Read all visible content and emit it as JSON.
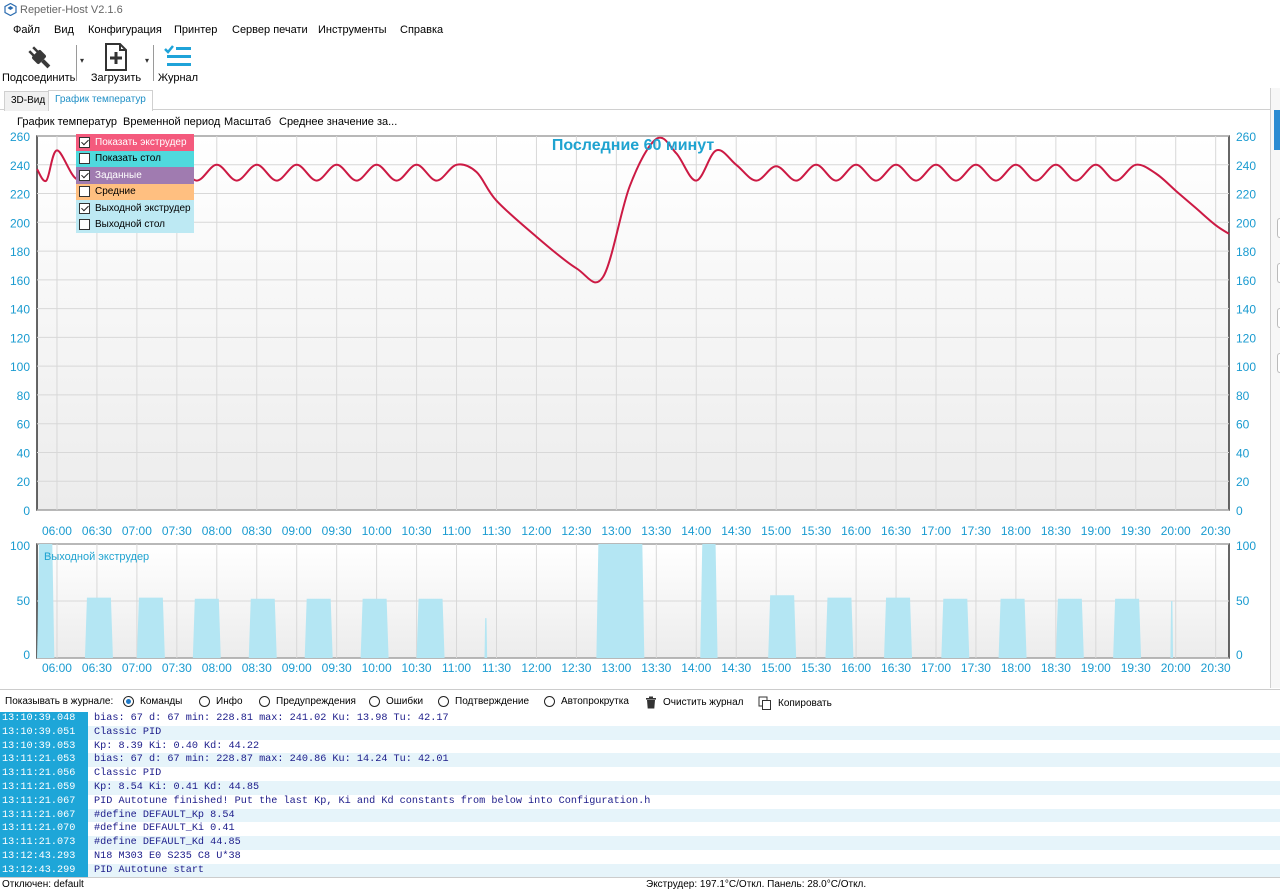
{
  "window": {
    "title": "Repetier-Host V2.1.6"
  },
  "menu": {
    "items": [
      "Файл",
      "Вид",
      "Конфигурация",
      "Принтер",
      "Сервер печати",
      "Инструменты",
      "Справка"
    ]
  },
  "toolbar": {
    "connect_label": "Подсоединить",
    "load_label": "Загрузить",
    "log_label": "Журнал",
    "connect_icon": "plug-icon",
    "load_icon": "file-add-icon",
    "log_icon": "list-icon"
  },
  "tabs": [
    {
      "label": "3D-Вид",
      "active": false
    },
    {
      "label": "График температур",
      "active": true
    }
  ],
  "chart_menu": {
    "items": [
      "График температур",
      "Временной период",
      "Масштаб",
      "Среднее значение за..."
    ]
  },
  "legend": [
    {
      "label": "Показать экструдер",
      "checked": true,
      "color": "#f45a7d",
      "text_color": "#ffffff"
    },
    {
      "label": "Показать стол",
      "checked": false,
      "color": "#4fd9dd",
      "text_color": "#000000"
    },
    {
      "label": "Заданные",
      "checked": true,
      "color": "#a07bb0",
      "text_color": "#ffffff"
    },
    {
      "label": "Средние",
      "checked": false,
      "color": "#ffbf80",
      "text_color": "#000000"
    },
    {
      "label": "Выходной экструдер",
      "checked": true,
      "color": "#bde9f3",
      "text_color": "#000000"
    },
    {
      "label": "Выходной стол",
      "checked": false,
      "color": "#bde9f3",
      "text_color": "#000000"
    }
  ],
  "chart_data": [
    {
      "type": "line",
      "title": "Последние 60 минут",
      "xlabel": "",
      "ylabel": "",
      "ylim": [
        0,
        260
      ],
      "y_ticks": [
        0,
        20,
        40,
        60,
        80,
        100,
        120,
        140,
        160,
        180,
        200,
        220,
        240,
        260
      ],
      "x_ticks": [
        "06:00",
        "06:30",
        "07:00",
        "07:30",
        "08:00",
        "08:30",
        "09:00",
        "09:30",
        "10:00",
        "10:30",
        "11:00",
        "11:30",
        "12:00",
        "12:30",
        "13:00",
        "13:30",
        "14:00",
        "14:30",
        "15:00",
        "15:30",
        "16:00",
        "16:30",
        "17:00",
        "17:30",
        "18:00",
        "18:30",
        "19:00",
        "19:30",
        "20:00",
        "20:30"
      ],
      "grid": true,
      "line_color": "#cc1a44",
      "series": [
        {
          "x": [
            "05:45",
            "05:52",
            "06:00",
            "06:15",
            "06:30",
            "06:45",
            "07:00",
            "07:15",
            "07:30",
            "07:45",
            "08:00",
            "08:15",
            "08:30",
            "08:45",
            "09:00",
            "09:15",
            "09:30",
            "09:45",
            "10:00",
            "10:15",
            "10:30",
            "10:45",
            "11:00",
            "11:15",
            "11:30",
            "12:00",
            "12:30",
            "12:50",
            "13:10",
            "13:30",
            "13:45",
            "14:00",
            "14:15",
            "14:30",
            "14:45",
            "15:00",
            "15:15",
            "15:30",
            "15:45",
            "16:00",
            "16:15",
            "16:30",
            "16:45",
            "17:00",
            "17:15",
            "17:30",
            "17:45",
            "18:00",
            "18:15",
            "18:30",
            "18:45",
            "19:00",
            "19:15",
            "19:30",
            "19:45",
            "20:00",
            "20:15",
            "20:30",
            "20:40"
          ],
          "y": [
            237,
            229,
            250,
            230,
            240,
            229,
            240,
            230,
            240,
            229,
            240,
            229,
            240,
            229,
            240,
            229,
            240,
            229,
            240,
            229,
            240,
            229,
            240,
            235,
            215,
            190,
            168,
            162,
            225,
            258,
            248,
            229,
            250,
            240,
            229,
            239,
            229,
            240,
            229,
            240,
            229,
            240,
            229,
            240,
            229,
            240,
            229,
            240,
            229,
            240,
            229,
            240,
            229,
            240,
            234,
            222,
            210,
            198,
            192
          ]
        }
      ]
    },
    {
      "type": "area",
      "title": "Выходной экструдер",
      "xlabel": "",
      "ylabel": "",
      "ylim": [
        0,
        100
      ],
      "y_ticks": [
        0,
        50,
        100
      ],
      "x_ticks": [
        "06:00",
        "06:30",
        "07:00",
        "07:30",
        "08:00",
        "08:30",
        "09:00",
        "09:30",
        "10:00",
        "10:30",
        "11:00",
        "11:30",
        "12:00",
        "12:30",
        "13:00",
        "13:30",
        "14:00",
        "14:30",
        "15:00",
        "15:30",
        "16:00",
        "16:30",
        "17:00",
        "17:30",
        "18:00",
        "18:30",
        "19:00",
        "19:30",
        "20:00",
        "20:30"
      ],
      "color": "#b4e6f3",
      "pulses": [
        {
          "start": "05:45",
          "end": "05:58",
          "value": 100
        },
        {
          "start": "06:21",
          "end": "06:42",
          "value": 53
        },
        {
          "start": "07:00",
          "end": "07:21",
          "value": 53
        },
        {
          "start": "07:42",
          "end": "08:03",
          "value": 52
        },
        {
          "start": "08:24",
          "end": "08:45",
          "value": 52
        },
        {
          "start": "09:06",
          "end": "09:27",
          "value": 52
        },
        {
          "start": "09:48",
          "end": "10:09",
          "value": 52
        },
        {
          "start": "10:30",
          "end": "10:51",
          "value": 52
        },
        {
          "start": "11:21",
          "end": "11:23",
          "value": 35
        },
        {
          "start": "12:45",
          "end": "13:21",
          "value": 100
        },
        {
          "start": "14:03",
          "end": "14:16",
          "value": 100
        },
        {
          "start": "14:54",
          "end": "15:15",
          "value": 55
        },
        {
          "start": "15:37",
          "end": "15:58",
          "value": 53
        },
        {
          "start": "16:21",
          "end": "16:42",
          "value": 53
        },
        {
          "start": "17:04",
          "end": "17:25",
          "value": 52
        },
        {
          "start": "17:47",
          "end": "18:08",
          "value": 52
        },
        {
          "start": "18:30",
          "end": "18:51",
          "value": 52
        },
        {
          "start": "19:13",
          "end": "19:34",
          "value": 52
        },
        {
          "start": "19:56",
          "end": "19:58",
          "value": 50
        }
      ]
    }
  ],
  "log_bar": {
    "label": "Показывать в журнале:",
    "options": [
      {
        "label": "Команды",
        "type": "radio",
        "checked": true
      },
      {
        "label": "Инфо",
        "type": "radio",
        "checked": false
      },
      {
        "label": "Предупреждения",
        "type": "radio",
        "checked": false
      },
      {
        "label": "Ошибки",
        "type": "radio",
        "checked": false
      },
      {
        "label": "Подтверждение",
        "type": "radio",
        "checked": false
      },
      {
        "label": "Автопрокрутка",
        "type": "radio",
        "checked": false
      }
    ],
    "clear_label": "Очистить журнал",
    "copy_label": "Копировать"
  },
  "log": [
    {
      "time": "13:10:39.048",
      "text": "bias: 67 d: 67 min: 228.81 max: 241.02 Ku: 13.98 Tu: 42.17"
    },
    {
      "time": "13:10:39.051",
      "text": "Classic PID"
    },
    {
      "time": "13:10:39.053",
      "text": "Kp: 8.39 Ki: 0.40 Kd: 44.22"
    },
    {
      "time": "13:11:21.053",
      "text": "bias: 67 d: 67 min: 228.87 max: 240.86 Ku: 14.24 Tu: 42.01"
    },
    {
      "time": "13:11:21.056",
      "text": "Classic PID"
    },
    {
      "time": "13:11:21.059",
      "text": "Kp: 8.54 Ki: 0.41 Kd: 44.85"
    },
    {
      "time": "13:11:21.067",
      "text": "PID Autotune finished! Put the last Kp, Ki and Kd constants from below into Configuration.h"
    },
    {
      "time": "13:11:21.067",
      "text": "#define DEFAULT_Kp 8.54"
    },
    {
      "time": "13:11:21.070",
      "text": "#define DEFAULT_Ki 0.41"
    },
    {
      "time": "13:11:21.073",
      "text": "#define DEFAULT_Kd 44.85"
    },
    {
      "time": "13:12:43.293",
      "text": "N18 M303 E0 S235 C8 U*38"
    },
    {
      "time": "13:12:43.299",
      "text": "PID Autotune start"
    }
  ],
  "status": {
    "left": "Отключен: default",
    "center": "Экструдер: 197.1°C/Откл. Панель: 28.0°C/Откл."
  }
}
